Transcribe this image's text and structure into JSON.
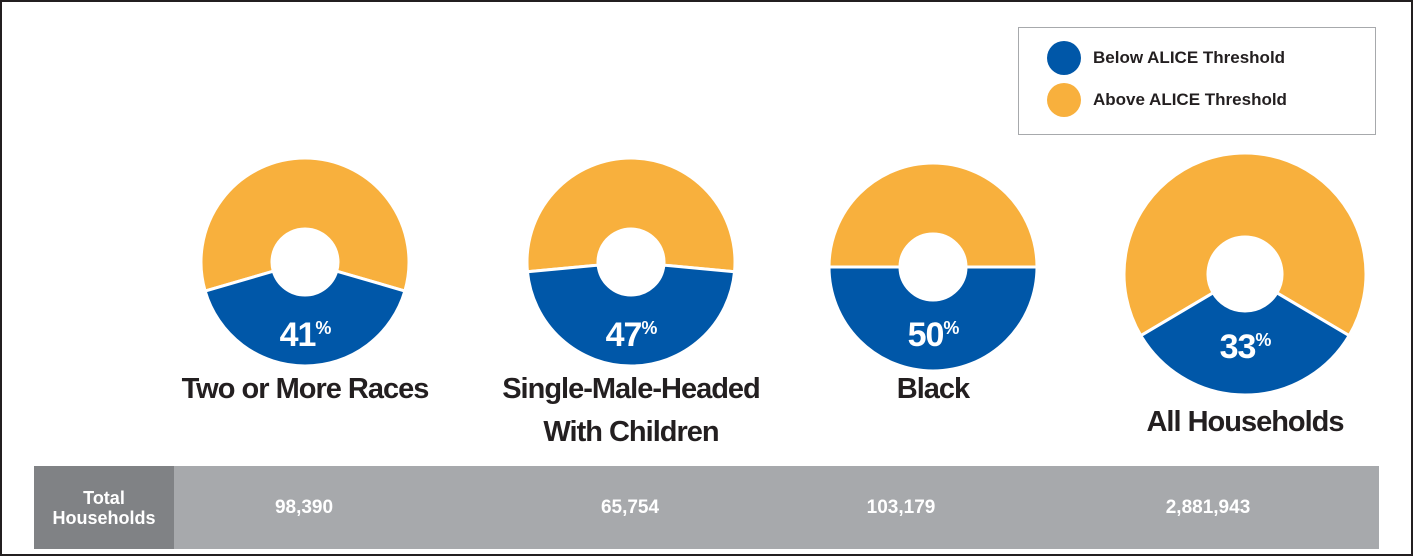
{
  "legend": {
    "items": [
      {
        "label": "Below ALICE Threshold",
        "color": "#0057a8"
      },
      {
        "label": "Above ALICE Threshold",
        "color": "#f8b03d"
      }
    ]
  },
  "table": {
    "header_line1": "Total",
    "header_line2": "Households",
    "values": [
      "98,390",
      "65,754",
      "103,179",
      "2,881,943"
    ]
  },
  "chart_data": {
    "type": "pie",
    "title": "",
    "series": [
      {
        "name": "Below ALICE Threshold",
        "color": "#0057a8"
      },
      {
        "name": "Above ALICE Threshold",
        "color": "#f8b03d"
      }
    ],
    "categories": [
      {
        "label_lines": [
          "Two or More Races"
        ],
        "below_pct": 41,
        "above_pct": 59
      },
      {
        "label_lines": [
          "Single-Male-Headed",
          "With Children"
        ],
        "below_pct": 47,
        "above_pct": 53
      },
      {
        "label_lines": [
          "Black"
        ],
        "below_pct": 50,
        "above_pct": 50
      },
      {
        "label_lines": [
          "All Households"
        ],
        "below_pct": 33,
        "above_pct": 67
      }
    ],
    "percent_symbol": "%"
  }
}
